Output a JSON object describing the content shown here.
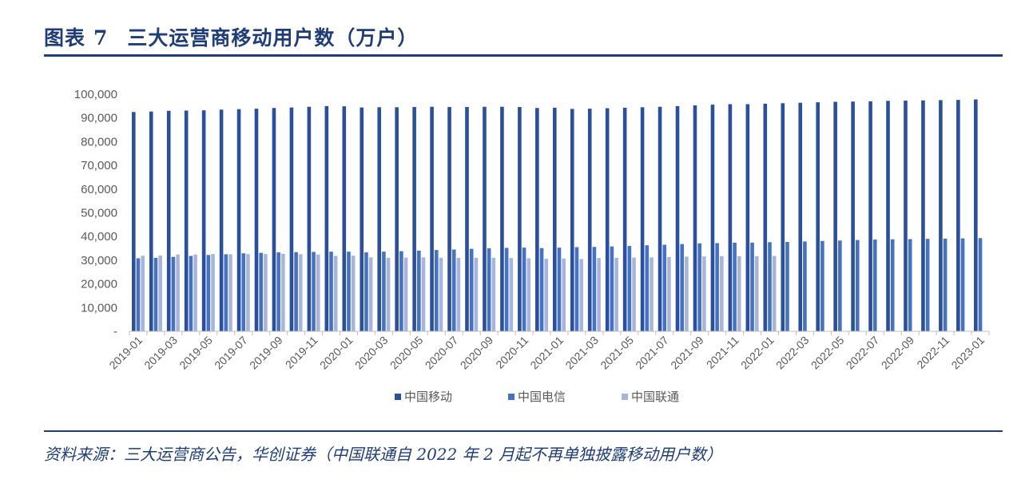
{
  "header": {
    "figure_label": "图表",
    "figure_number": "7",
    "title": "三大运营商移动用户数（万户）"
  },
  "footer": {
    "source": "资料来源：三大运营商公告，华创证券（中国联通自 2022 年 2 月起不再单独披露移动用户数）"
  },
  "colors": {
    "title": "#1f3d7a",
    "axis": "#bfbfbf",
    "tick_text": "#595959"
  },
  "chart_data": {
    "type": "bar",
    "categories": [
      "2019-01",
      "2019-02",
      "2019-03",
      "2019-04",
      "2019-05",
      "2019-06",
      "2019-07",
      "2019-08",
      "2019-09",
      "2019-10",
      "2019-11",
      "2019-12",
      "2020-01",
      "2020-02",
      "2020-03",
      "2020-04",
      "2020-05",
      "2020-06",
      "2020-07",
      "2020-08",
      "2020-09",
      "2020-10",
      "2020-11",
      "2020-12",
      "2021-01",
      "2021-02",
      "2021-03",
      "2021-04",
      "2021-05",
      "2021-06",
      "2021-07",
      "2021-08",
      "2021-09",
      "2021-10",
      "2021-11",
      "2021-12",
      "2022-01",
      "2022-02",
      "2022-03",
      "2022-04",
      "2022-05",
      "2022-06",
      "2022-07",
      "2022-08",
      "2022-09",
      "2022-10",
      "2022-11",
      "2022-12",
      "2023-01"
    ],
    "x_tick_labels": [
      "2019-01",
      "2019-03",
      "2019-05",
      "2019-07",
      "2019-09",
      "2019-11",
      "2020-01",
      "2020-03",
      "2020-05",
      "2020-07",
      "2020-09",
      "2020-11",
      "2021-01",
      "2021-03",
      "2021-05",
      "2021-07",
      "2021-09",
      "2021-11",
      "2022-01",
      "2022-03",
      "2022-05",
      "2022-07",
      "2022-09",
      "2022-11",
      "2023-01"
    ],
    "y_tick_labels": [
      "-",
      "10,000",
      "20,000",
      "30,000",
      "40,000",
      "50,000",
      "60,000",
      "70,000",
      "80,000",
      "90,000",
      "100,000"
    ],
    "ylim": [
      0,
      100000
    ],
    "y_step": 10000,
    "series": [
      {
        "name": "中国移动",
        "color": "#2b4fa0",
        "values": [
          92500,
          92700,
          93000,
          93100,
          93200,
          93500,
          93700,
          93900,
          94200,
          94400,
          94700,
          95000,
          94900,
          94400,
          94500,
          94500,
          94600,
          94700,
          94600,
          94600,
          94700,
          94700,
          94600,
          94200,
          94300,
          93800,
          93900,
          94100,
          94300,
          94500,
          94700,
          95000,
          95300,
          95600,
          95800,
          95800,
          96000,
          96200,
          96400,
          96600,
          96800,
          96900,
          97000,
          97200,
          97300,
          97400,
          97500,
          97600,
          97800
        ]
      },
      {
        "name": "中国电信",
        "color": "#4472c4",
        "values": [
          30800,
          31000,
          31400,
          31800,
          32200,
          32500,
          32900,
          33100,
          33300,
          33400,
          33500,
          33600,
          33600,
          33300,
          33600,
          33800,
          34000,
          34300,
          34500,
          34800,
          35000,
          35200,
          35300,
          35100,
          35300,
          35500,
          35600,
          35800,
          36000,
          36300,
          36500,
          36800,
          37100,
          37200,
          37400,
          37400,
          37600,
          37700,
          37900,
          38100,
          38300,
          38500,
          38700,
          38800,
          38900,
          39000,
          39100,
          39200,
          39300
        ]
      },
      {
        "name": "中国联通",
        "color": "#a9b4dc",
        "values": [
          31900,
          32000,
          32400,
          32400,
          32600,
          32500,
          32600,
          32600,
          32700,
          32500,
          32400,
          31800,
          31900,
          31200,
          31000,
          31100,
          31200,
          31000,
          31000,
          31000,
          31000,
          30900,
          30800,
          30600,
          30700,
          30500,
          30900,
          31000,
          31100,
          31200,
          31300,
          31500,
          31600,
          31700,
          31700,
          31700,
          31800,
          null,
          null,
          null,
          null,
          null,
          null,
          null,
          null,
          null,
          null,
          null,
          null
        ]
      }
    ],
    "legend_position": "bottom",
    "grid": false
  }
}
